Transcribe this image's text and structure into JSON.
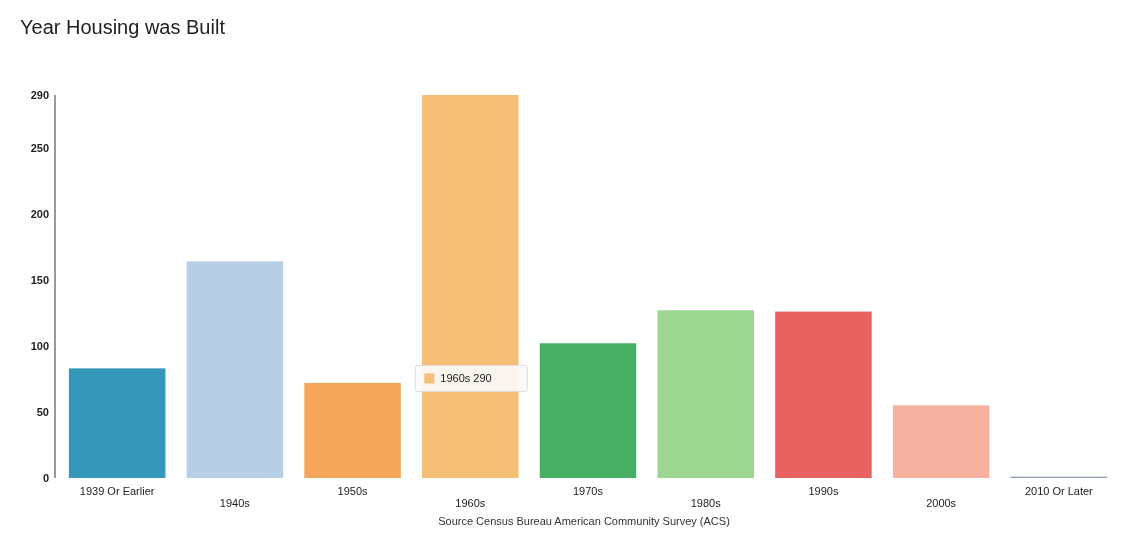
{
  "chart_data": {
    "type": "bar",
    "title": "Year Housing was Built",
    "categories": [
      "1939 Or Earlier",
      "1940s",
      "1950s",
      "1960s",
      "1970s",
      "1980s",
      "1990s",
      "2000s",
      "2010 Or Later"
    ],
    "values": [
      83,
      164,
      72,
      290,
      102,
      127,
      126,
      55,
      1
    ],
    "colors": [
      "#3598bb",
      "#b7cfe4",
      "#f4a65a",
      "#f5bf77",
      "#48ae63",
      "#9dd690",
      "#e86262",
      "#f5b0a0",
      "#8e9bb0"
    ],
    "ylim": [
      0,
      290
    ],
    "yticks": [
      0,
      50,
      100,
      150,
      200,
      250,
      290
    ],
    "grid": false,
    "annotations": [
      "1960s 290",
      "Source  Census Bureau American Community Survey (ACS)"
    ]
  }
}
